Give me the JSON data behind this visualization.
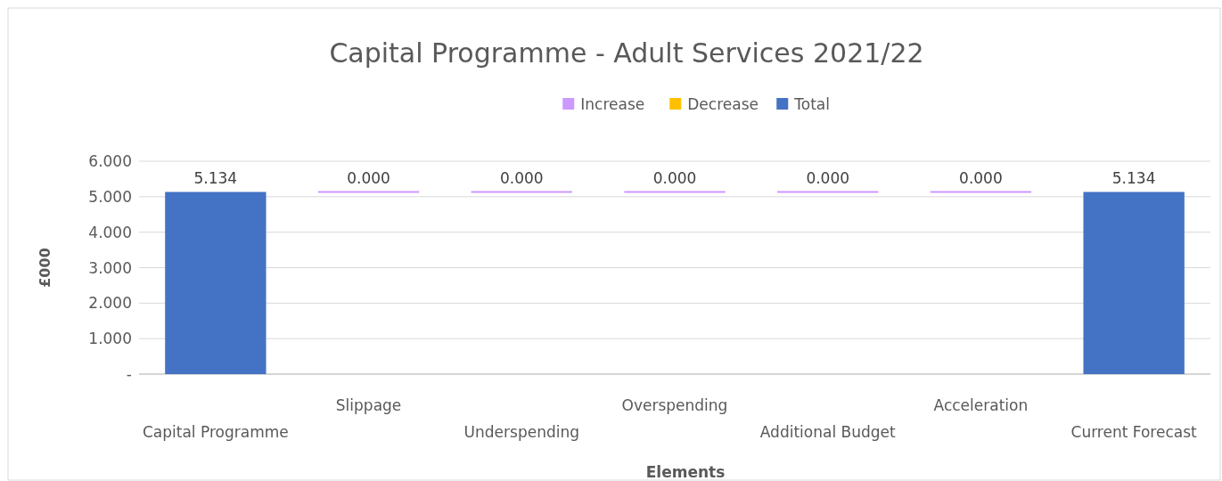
{
  "chart_data": {
    "type": "bar",
    "title": "Capital Programme - Adult Services 2021/22",
    "xlabel": "Elements",
    "ylabel": "£000",
    "categories": [
      "Capital Programme",
      "Slippage",
      "Underspending",
      "Overspending",
      "Additional Budget",
      "Acceleration",
      "Current Forecast"
    ],
    "series": [
      {
        "name": "Increase",
        "color": "#cc99ff",
        "values": [
          null,
          0,
          0,
          0,
          0,
          0,
          null
        ],
        "base": [
          null,
          5.134,
          5.134,
          5.134,
          5.134,
          5.134,
          null
        ],
        "value_labels": [
          null,
          "0.000",
          "0.000",
          "0.000",
          "0.000",
          "0.000",
          null
        ]
      },
      {
        "name": "Decrease",
        "color": "#ffc000",
        "values": [
          null,
          null,
          null,
          null,
          null,
          null,
          null
        ]
      },
      {
        "name": "Total",
        "color": "#4472c4",
        "values": [
          5.134,
          null,
          null,
          null,
          null,
          null,
          5.134
        ],
        "value_labels": [
          "5.134",
          null,
          null,
          null,
          null,
          null,
          "5.134"
        ]
      }
    ],
    "ylim": [
      0,
      6
    ],
    "yticks": [
      {
        "value": 0,
        "label": "-"
      },
      {
        "value": 1,
        "label": "1.000"
      },
      {
        "value": 2,
        "label": "2.000"
      },
      {
        "value": 3,
        "label": "3.000"
      },
      {
        "value": 4,
        "label": "4.000"
      },
      {
        "value": 5,
        "label": "5.000"
      },
      {
        "value": 6,
        "label": "6.000"
      }
    ],
    "grid": "y",
    "legend": "top"
  }
}
